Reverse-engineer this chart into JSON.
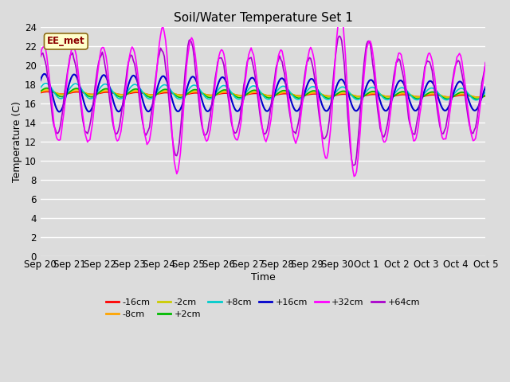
{
  "title": "Soil/Water Temperature Set 1",
  "xlabel": "Time",
  "ylabel": "Temperature (C)",
  "ylim": [
    0,
    24
  ],
  "yticks": [
    0,
    2,
    4,
    6,
    8,
    10,
    12,
    14,
    16,
    18,
    20,
    22,
    24
  ],
  "annotation": "EE_met",
  "annotation_color": "#8B0000",
  "annotation_bg": "#FFFFCC",
  "bg_color": "#DCDCDC",
  "grid_color": "#FFFFFF",
  "legend_row1": [
    "-16cm",
    "-8cm",
    "-2cm",
    "+2cm",
    "+8cm",
    "+16cm"
  ],
  "legend_row2": [
    "+32cm",
    "+64cm"
  ],
  "series_colors": {
    "-16cm": "#FF0000",
    "-8cm": "#FFA500",
    "-2cm": "#CCCC00",
    "+2cm": "#00BB00",
    "+8cm": "#00CCCC",
    "+16cm": "#0000CC",
    "+32cm": "#FF00FF",
    "+64cm": "#AA00CC"
  },
  "xtick_labels": [
    "Sep 20",
    "Sep 21",
    "Sep 22",
    "Sep 23",
    "Sep 24",
    "Sep 25",
    "Sep 26",
    "Sep 27",
    "Sep 28",
    "Sep 29",
    "Sep 30",
    "Oct 1",
    "Oct 2",
    "Oct 3",
    "Oct 4",
    "Oct 5"
  ]
}
